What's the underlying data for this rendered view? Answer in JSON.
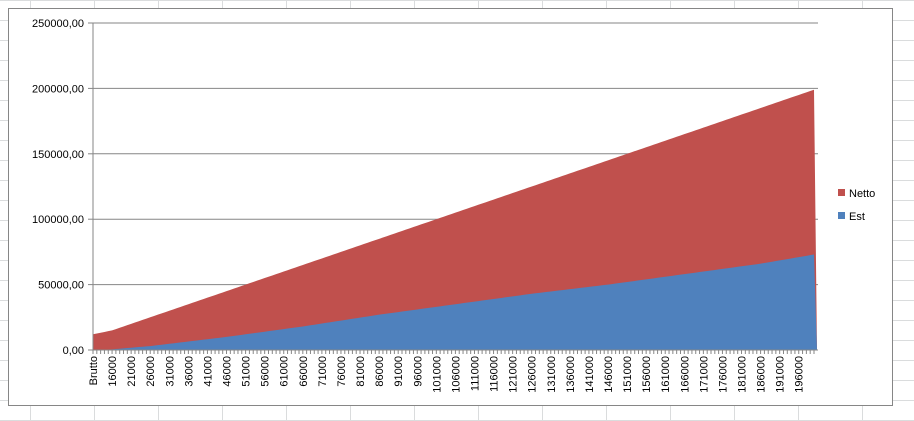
{
  "chart_data": {
    "type": "area",
    "stacked": true,
    "categories": [
      "Brutto",
      "16000",
      "21000",
      "26000",
      "31000",
      "36000",
      "41000",
      "46000",
      "51000",
      "56000",
      "61000",
      "66000",
      "71000",
      "76000",
      "81000",
      "86000",
      "91000",
      "96000",
      "101000",
      "106000",
      "111000",
      "116000",
      "121000",
      "126000",
      "131000",
      "136000",
      "141000",
      "146000",
      "151000",
      "156000",
      "161000",
      "166000",
      "171000",
      "176000",
      "181000",
      "186000",
      "191000",
      "196000"
    ],
    "x_start": 11000,
    "x_end": 200000,
    "x_tick_step": 5000,
    "series": [
      {
        "name": "Est",
        "color": "#4f81bd",
        "points": [
          [
            11000,
            0
          ],
          [
            16000,
            500
          ],
          [
            26000,
            3000
          ],
          [
            46000,
            10000
          ],
          [
            66000,
            18000
          ],
          [
            86000,
            27000
          ],
          [
            106000,
            35000
          ],
          [
            126000,
            43000
          ],
          [
            146000,
            50000
          ],
          [
            166000,
            58000
          ],
          [
            186000,
            66000
          ],
          [
            200000,
            73000
          ]
        ]
      },
      {
        "name": "Netto",
        "color": "#c0504d",
        "points": [
          [
            11000,
            12000
          ],
          [
            16000,
            15000
          ],
          [
            46000,
            45000
          ],
          [
            86000,
            85000
          ],
          [
            126000,
            125000
          ],
          [
            166000,
            165000
          ],
          [
            200000,
            199000
          ]
        ]
      }
    ],
    "drop_to_zero_at_end": true,
    "y_ticks": [
      "0,00",
      "50000,00",
      "100000,00",
      "150000,00",
      "200000,00",
      "250000,00"
    ],
    "ylim": [
      0,
      250000
    ],
    "grid": true,
    "legend_position": "right",
    "legend_order": [
      "Netto",
      "Est"
    ]
  }
}
